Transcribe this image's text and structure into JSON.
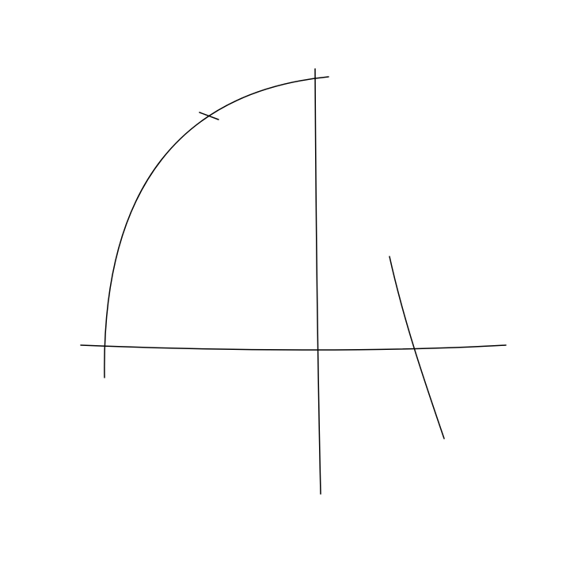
{
  "diagram": {
    "line_color": "#000000",
    "background_color": "#ffffff"
  }
}
